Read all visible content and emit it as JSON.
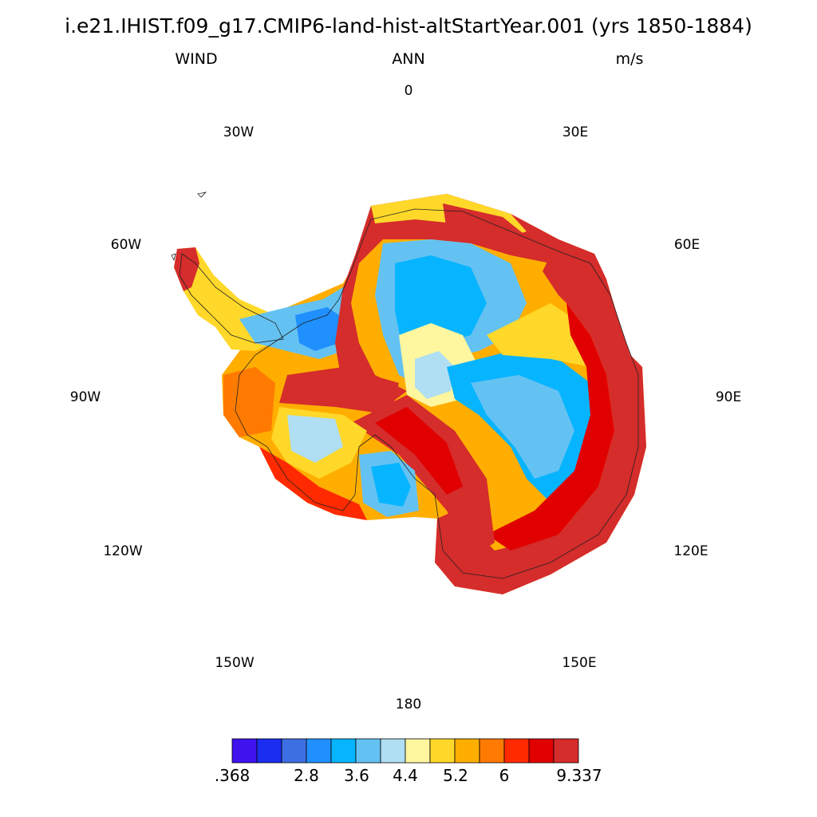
{
  "title": "i.e21.IHIST.f09_g17.CMIP6-land-hist-altStartYear.001 (yrs 1850-1884)",
  "variable": "WIND",
  "season": "ANN",
  "units": "m/s",
  "longitude_labels": {
    "lon_0": "0",
    "lon_30e": "30E",
    "lon_60e": "60E",
    "lon_90e": "90E",
    "lon_120e": "120E",
    "lon_150e": "150E",
    "lon_180": "180",
    "lon_150w": "150W",
    "lon_120w": "120W",
    "lon_90w": "90W",
    "lon_60w": "60W",
    "lon_30w": "30W"
  },
  "colorbar": {
    "colors": [
      "#3f12ee",
      "#1b2ef0",
      "#3d6fe2",
      "#2090ff",
      "#07b4ff",
      "#64c2f2",
      "#b0def2",
      "#fff6a0",
      "#ffd829",
      "#ffae00",
      "#ff7a00",
      "#ff2a00",
      "#e10000",
      "#d52c2c"
    ],
    "labels": {
      "l0": ".368",
      "l1": "2.8",
      "l2": "3.6",
      "l3": "4.4",
      "l4": "5.2",
      "l5": "6",
      "l6": "9.337"
    }
  }
}
